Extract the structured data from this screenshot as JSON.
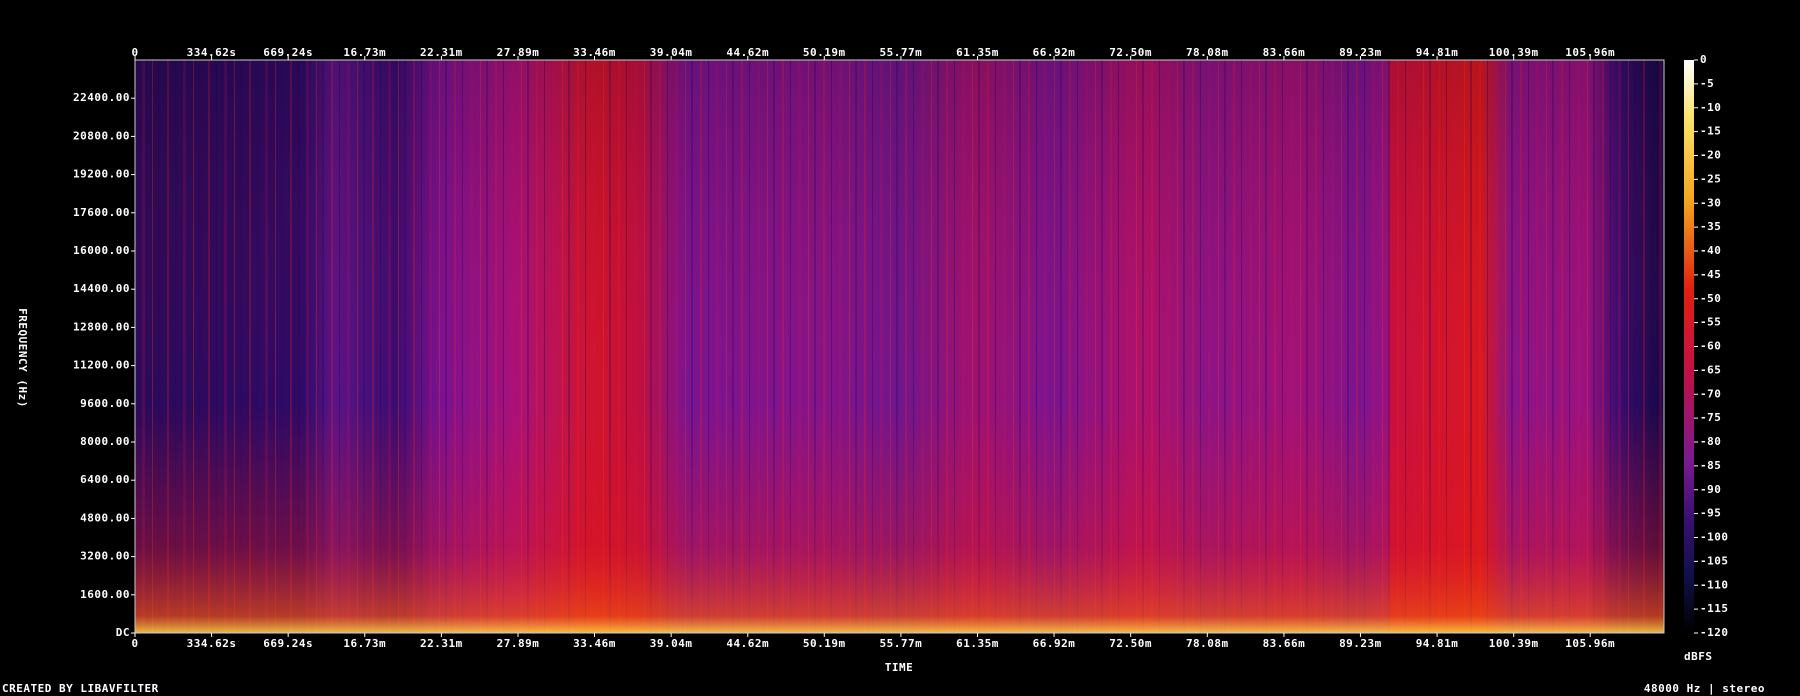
{
  "chart_data": {
    "type": "spectrogram",
    "x_label": "TIME",
    "y_label": "FREQUENCY (Hz)",
    "colorbar_label": "dBFS",
    "footer_left": "CREATED BY LIBAVFILTER",
    "footer_right": "48000 Hz | stereo",
    "xlim": [
      0,
      6680
    ],
    "xticks": [
      0,
      {
        "value": 334.62,
        "label": "334.62s"
      },
      {
        "value": 669.24,
        "label": "669.24s"
      },
      {
        "value": 1003.8,
        "label": "16.73m"
      },
      {
        "value": 1338.6,
        "label": "22.31m"
      },
      {
        "value": 1673.4,
        "label": "27.89m"
      },
      {
        "value": 2007.6,
        "label": "33.46m"
      },
      {
        "value": 2342.4,
        "label": "39.04m"
      },
      {
        "value": 2677.2,
        "label": "44.62m"
      },
      {
        "value": 3011.4,
        "label": "50.19m"
      },
      {
        "value": 3346.2,
        "label": "55.77m"
      },
      {
        "value": 3681,
        "label": "61.35m"
      },
      {
        "value": 4015.2,
        "label": "66.92m"
      },
      {
        "value": 4350,
        "label": "72.50m"
      },
      {
        "value": 4684.8,
        "label": "78.08m"
      },
      {
        "value": 5019.6,
        "label": "83.66m"
      },
      {
        "value": 5353.8,
        "label": "89.23m"
      },
      {
        "value": 5688.6,
        "label": "94.81m"
      },
      {
        "value": 6023.4,
        "label": "100.39m"
      },
      {
        "value": 6357.6,
        "label": "105.96m"
      }
    ],
    "ylim": [
      0,
      24000
    ],
    "yticks": [
      {
        "value": 0,
        "label": "DC"
      },
      {
        "value": 1600,
        "label": "1600.00"
      },
      {
        "value": 3200,
        "label": "3200.00"
      },
      {
        "value": 4800,
        "label": "4800.00"
      },
      {
        "value": 6400,
        "label": "6400.00"
      },
      {
        "value": 8000,
        "label": "8000.00"
      },
      {
        "value": 9600,
        "label": "9600.00"
      },
      {
        "value": 11200,
        "label": "11200.00"
      },
      {
        "value": 12800,
        "label": "12800.00"
      },
      {
        "value": 14400,
        "label": "14400.00"
      },
      {
        "value": 16000,
        "label": "16000.00"
      },
      {
        "value": 17600,
        "label": "17600.00"
      },
      {
        "value": 19200,
        "label": "19200.00"
      },
      {
        "value": 20800,
        "label": "20800.00"
      },
      {
        "value": 22400,
        "label": "22400.00"
      }
    ],
    "clim": [
      -120,
      0
    ],
    "cticks": [
      0,
      -5,
      -10,
      -15,
      -20,
      -25,
      -30,
      -35,
      -40,
      -45,
      -50,
      -55,
      -60,
      -65,
      -70,
      -75,
      -80,
      -85,
      -90,
      -95,
      -100,
      -105,
      -110,
      -115,
      -120
    ]
  }
}
